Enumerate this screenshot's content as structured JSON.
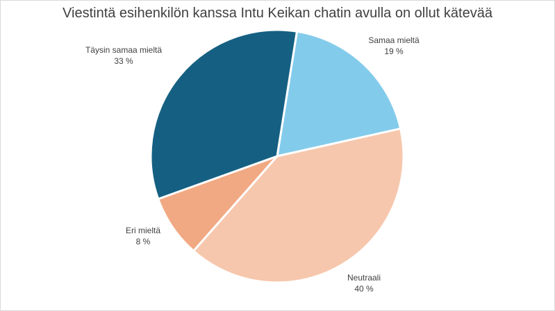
{
  "chart_data": {
    "type": "pie",
    "title": "Viestintä esihenkilön kanssa Intu Keikan chatin avulla on ollut kätevää",
    "slices": [
      {
        "label": "Samaa mieltä",
        "value": 19,
        "value_label": "19 %",
        "color": "#83cbeb"
      },
      {
        "label": "Neutraali",
        "value": 40,
        "value_label": "40 %",
        "color": "#f6c7ad"
      },
      {
        "label": "Eri mieltä",
        "value": 8,
        "value_label": "8 %",
        "color": "#f1a983"
      },
      {
        "label": "Täysin samaa mieltä",
        "value": 33,
        "value_label": "33 %",
        "color": "#156082"
      }
    ],
    "start_angle_deg": 9,
    "legend": "none"
  }
}
